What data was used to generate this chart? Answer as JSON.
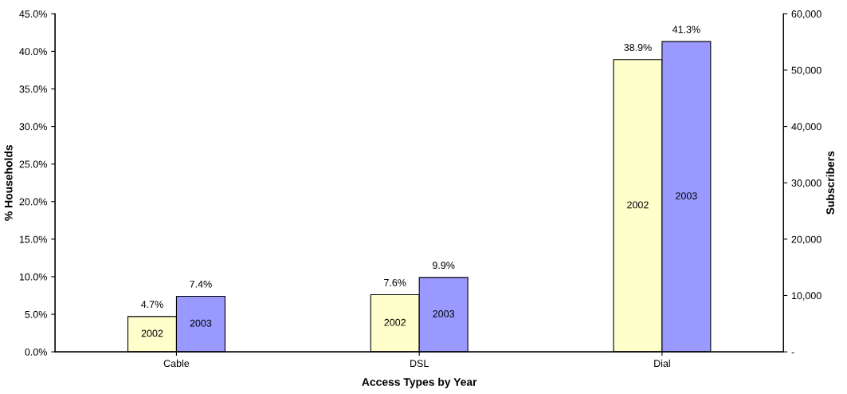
{
  "chart_data": {
    "type": "bar",
    "xlabel": "Access Types by Year",
    "ylabel": "% Households",
    "y2label": "Subscribers",
    "categories": [
      "Cable",
      "DSL",
      "Dial"
    ],
    "series": [
      {
        "name": "2002",
        "color": "#ffffcc",
        "values": [
          4.7,
          7.6,
          38.9
        ],
        "value_labels": [
          "4.7%",
          "7.6%",
          "38.9%"
        ]
      },
      {
        "name": "2003",
        "color": "#9999ff",
        "values": [
          7.4,
          9.9,
          41.3
        ],
        "value_labels": [
          "7.4%",
          "9.9%",
          "41.3%"
        ]
      }
    ],
    "ylim": [
      0,
      45
    ],
    "yticks": [
      {
        "value": 0,
        "label": "0.0%"
      },
      {
        "value": 5,
        "label": "5.0%"
      },
      {
        "value": 10,
        "label": "10.0%"
      },
      {
        "value": 15,
        "label": "15.0%"
      },
      {
        "value": 20,
        "label": "20.0%"
      },
      {
        "value": 25,
        "label": "25.0%"
      },
      {
        "value": 30,
        "label": "30.0%"
      },
      {
        "value": 35,
        "label": "35.0%"
      },
      {
        "value": 40,
        "label": "40.0%"
      },
      {
        "value": 45,
        "label": "45.0%"
      }
    ],
    "y2lim": [
      0,
      60000
    ],
    "y2ticks": [
      {
        "value": 0,
        "label": "-"
      },
      {
        "value": 10000,
        "label": "10,000"
      },
      {
        "value": 20000,
        "label": "20,000"
      },
      {
        "value": 30000,
        "label": "30,000"
      },
      {
        "value": 40000,
        "label": "40,000"
      },
      {
        "value": 50000,
        "label": "50,000"
      },
      {
        "value": 60000,
        "label": "60,000"
      }
    ],
    "grid": false,
    "legend": false
  }
}
